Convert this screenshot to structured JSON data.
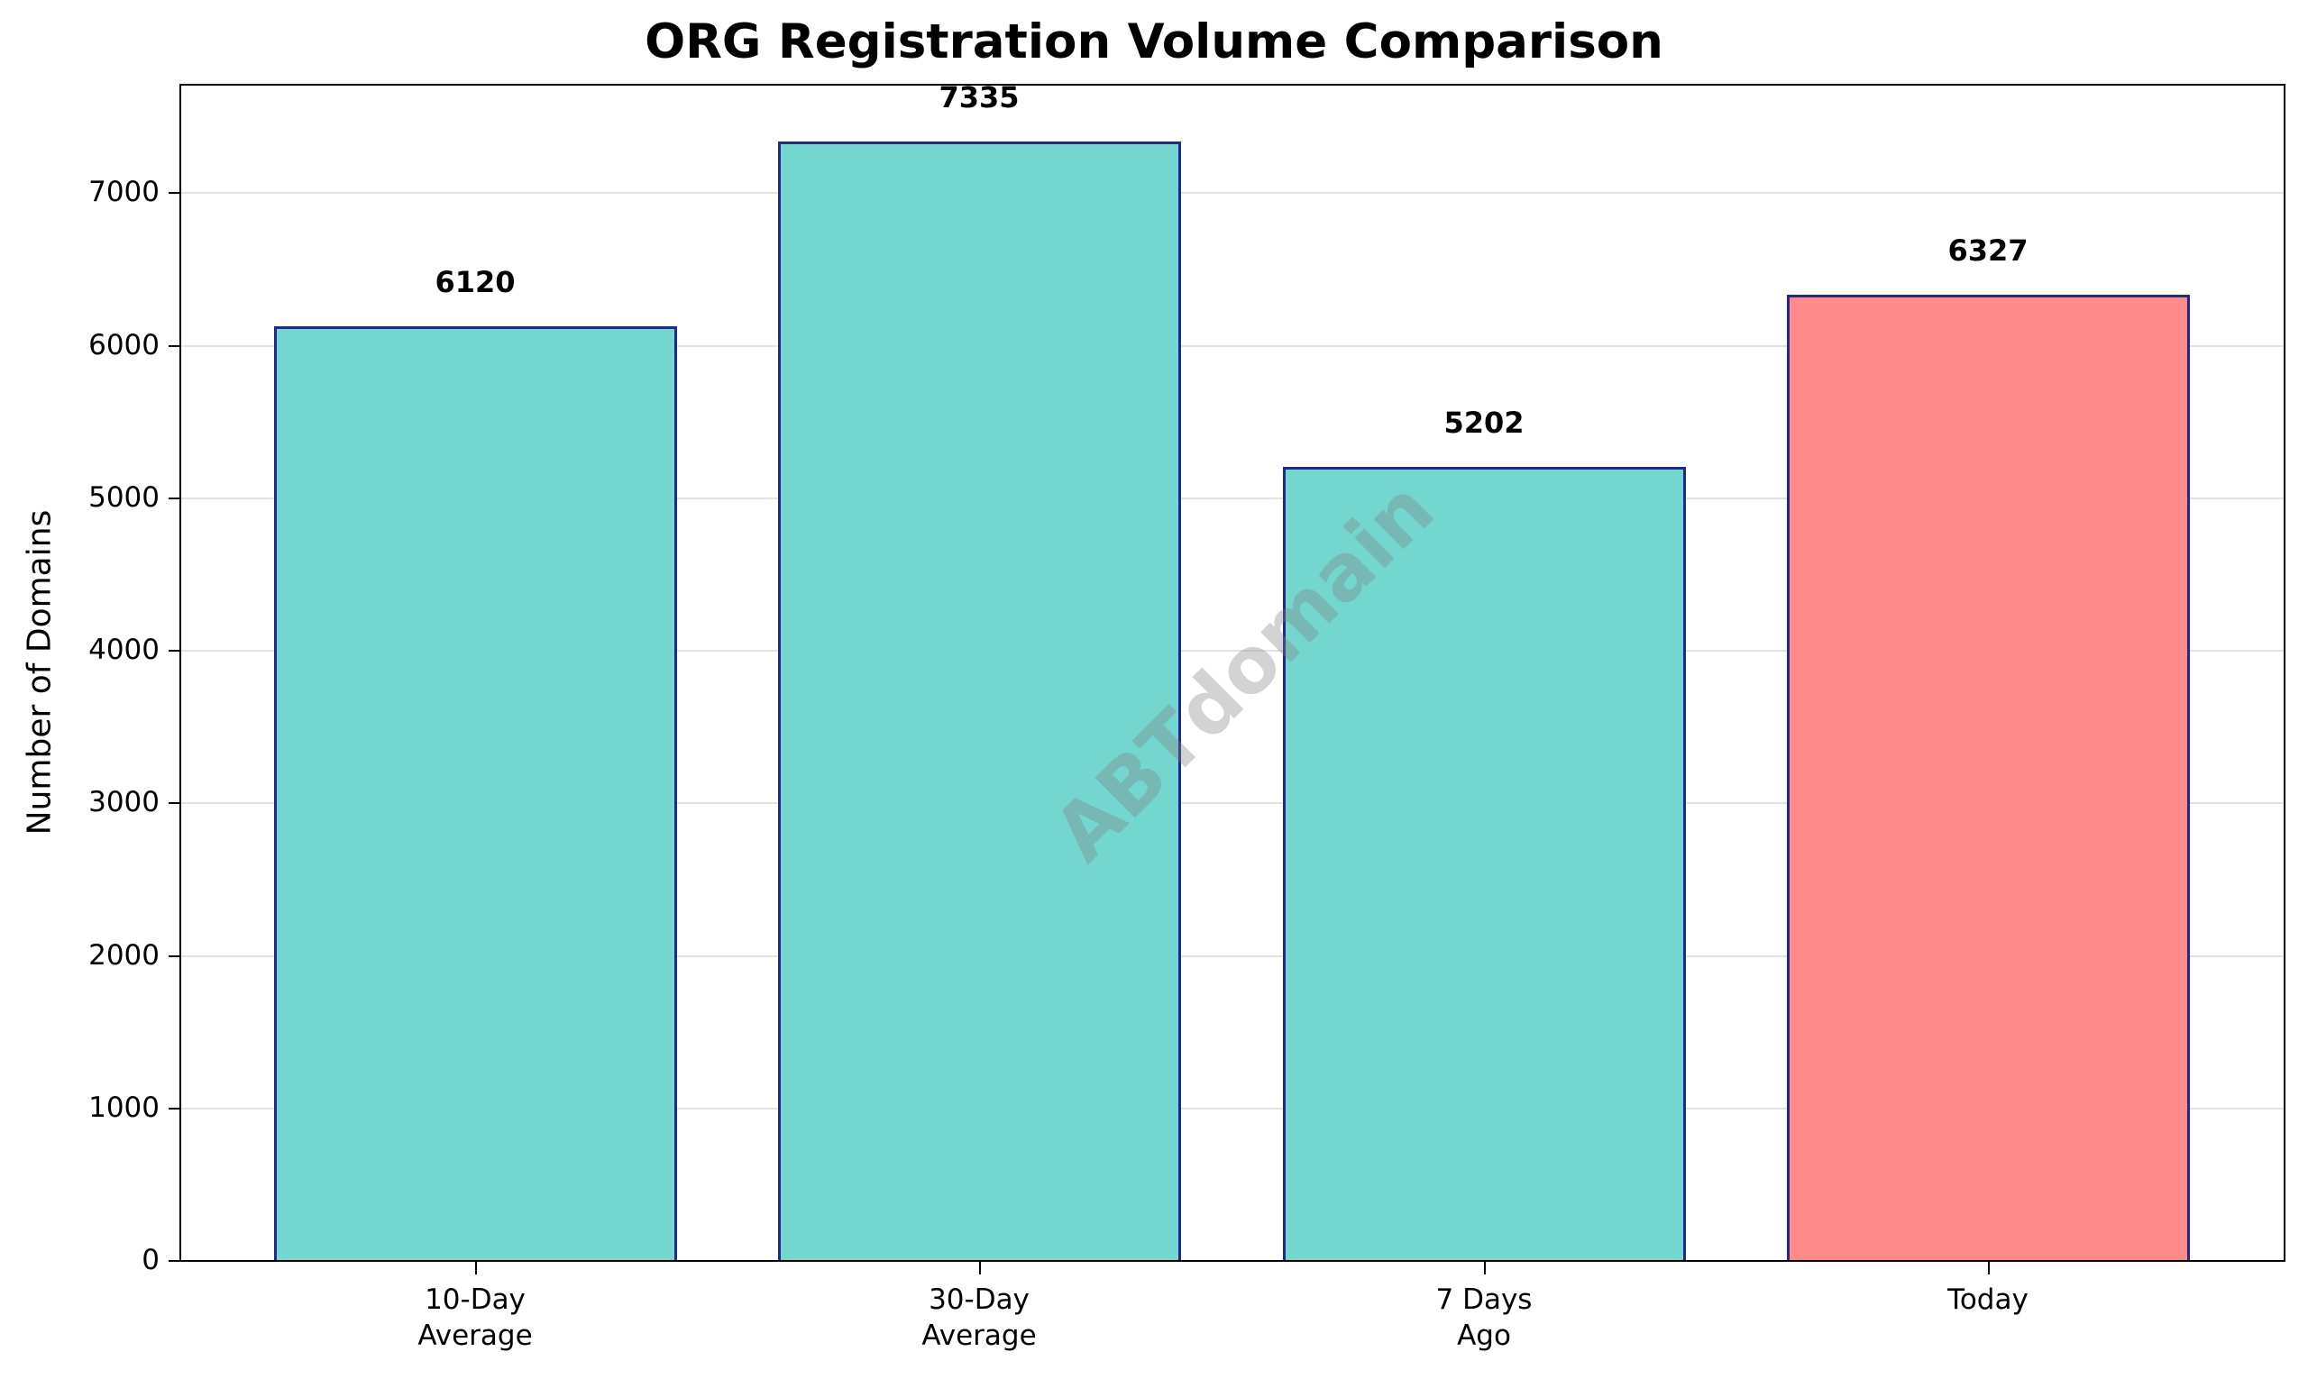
{
  "chart_data": {
    "type": "bar",
    "title": "ORG Registration Volume Comparison",
    "xlabel": "",
    "ylabel": "Number of Domains",
    "categories": [
      "10-Day\nAverage",
      "30-Day\nAverage",
      "7 Days\nAgo",
      "Today"
    ],
    "values": [
      6120,
      7335,
      5202,
      6327
    ],
    "value_labels": [
      "6120",
      "7335",
      "5202",
      "6327"
    ],
    "bar_colors": [
      "#73d6cf",
      "#73d6cf",
      "#73d6cf",
      "#ff8a8a"
    ],
    "edge_color": "#1f2a8a",
    "ylim": [
      0,
      7700
    ],
    "yticks": [
      0,
      1000,
      2000,
      3000,
      4000,
      5000,
      6000,
      7000
    ],
    "ytick_labels": [
      "0",
      "1000",
      "2000",
      "3000",
      "4000",
      "5000",
      "6000",
      "7000"
    ],
    "grid": "y",
    "legend": null,
    "watermark": "ABTdomain"
  }
}
